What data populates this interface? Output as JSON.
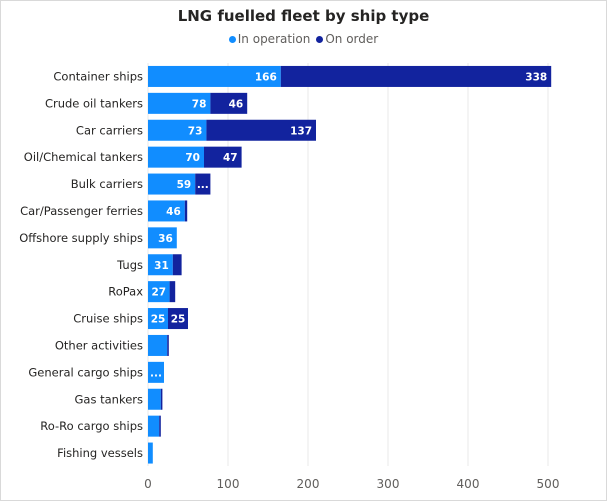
{
  "chart_data": {
    "type": "bar",
    "orientation": "horizontal",
    "stacked": true,
    "title": "LNG fuelled fleet by ship type",
    "xlabel": "",
    "ylabel": "",
    "xlim": [
      0,
      500
    ],
    "xticks": [
      0,
      100,
      200,
      300,
      400,
      500
    ],
    "legend_position": "top-center",
    "categories": [
      "Container ships",
      "Crude oil tankers",
      "Car carriers",
      "Oil/Chemical tankers",
      "Bulk carriers",
      "Car/Passenger ferries",
      "Offshore supply ships",
      "Tugs",
      "RoPax",
      "Cruise ships",
      "Other activities",
      "General cargo ships",
      "Gas tankers",
      "Ro-Ro cargo ships",
      "Fishing vessels"
    ],
    "series": [
      {
        "name": "In operation",
        "color": "#118dff",
        "values": [
          166,
          78,
          73,
          70,
          59,
          46,
          36,
          31,
          27,
          25,
          24,
          20,
          16,
          14,
          6
        ],
        "data_labels": [
          "166",
          "78",
          "73",
          "70",
          "59",
          "46",
          "36",
          "31",
          "27",
          "25",
          "",
          "...",
          "",
          "",
          ""
        ]
      },
      {
        "name": "On order",
        "color": "#12239e",
        "values": [
          338,
          46,
          137,
          47,
          19,
          3,
          0,
          11,
          7,
          25,
          2,
          0,
          2,
          2,
          0
        ],
        "data_labels": [
          "338",
          "46",
          "137",
          "47",
          "...",
          "",
          "",
          "",
          "",
          "25",
          "",
          "",
          "",
          "",
          ""
        ]
      }
    ]
  }
}
